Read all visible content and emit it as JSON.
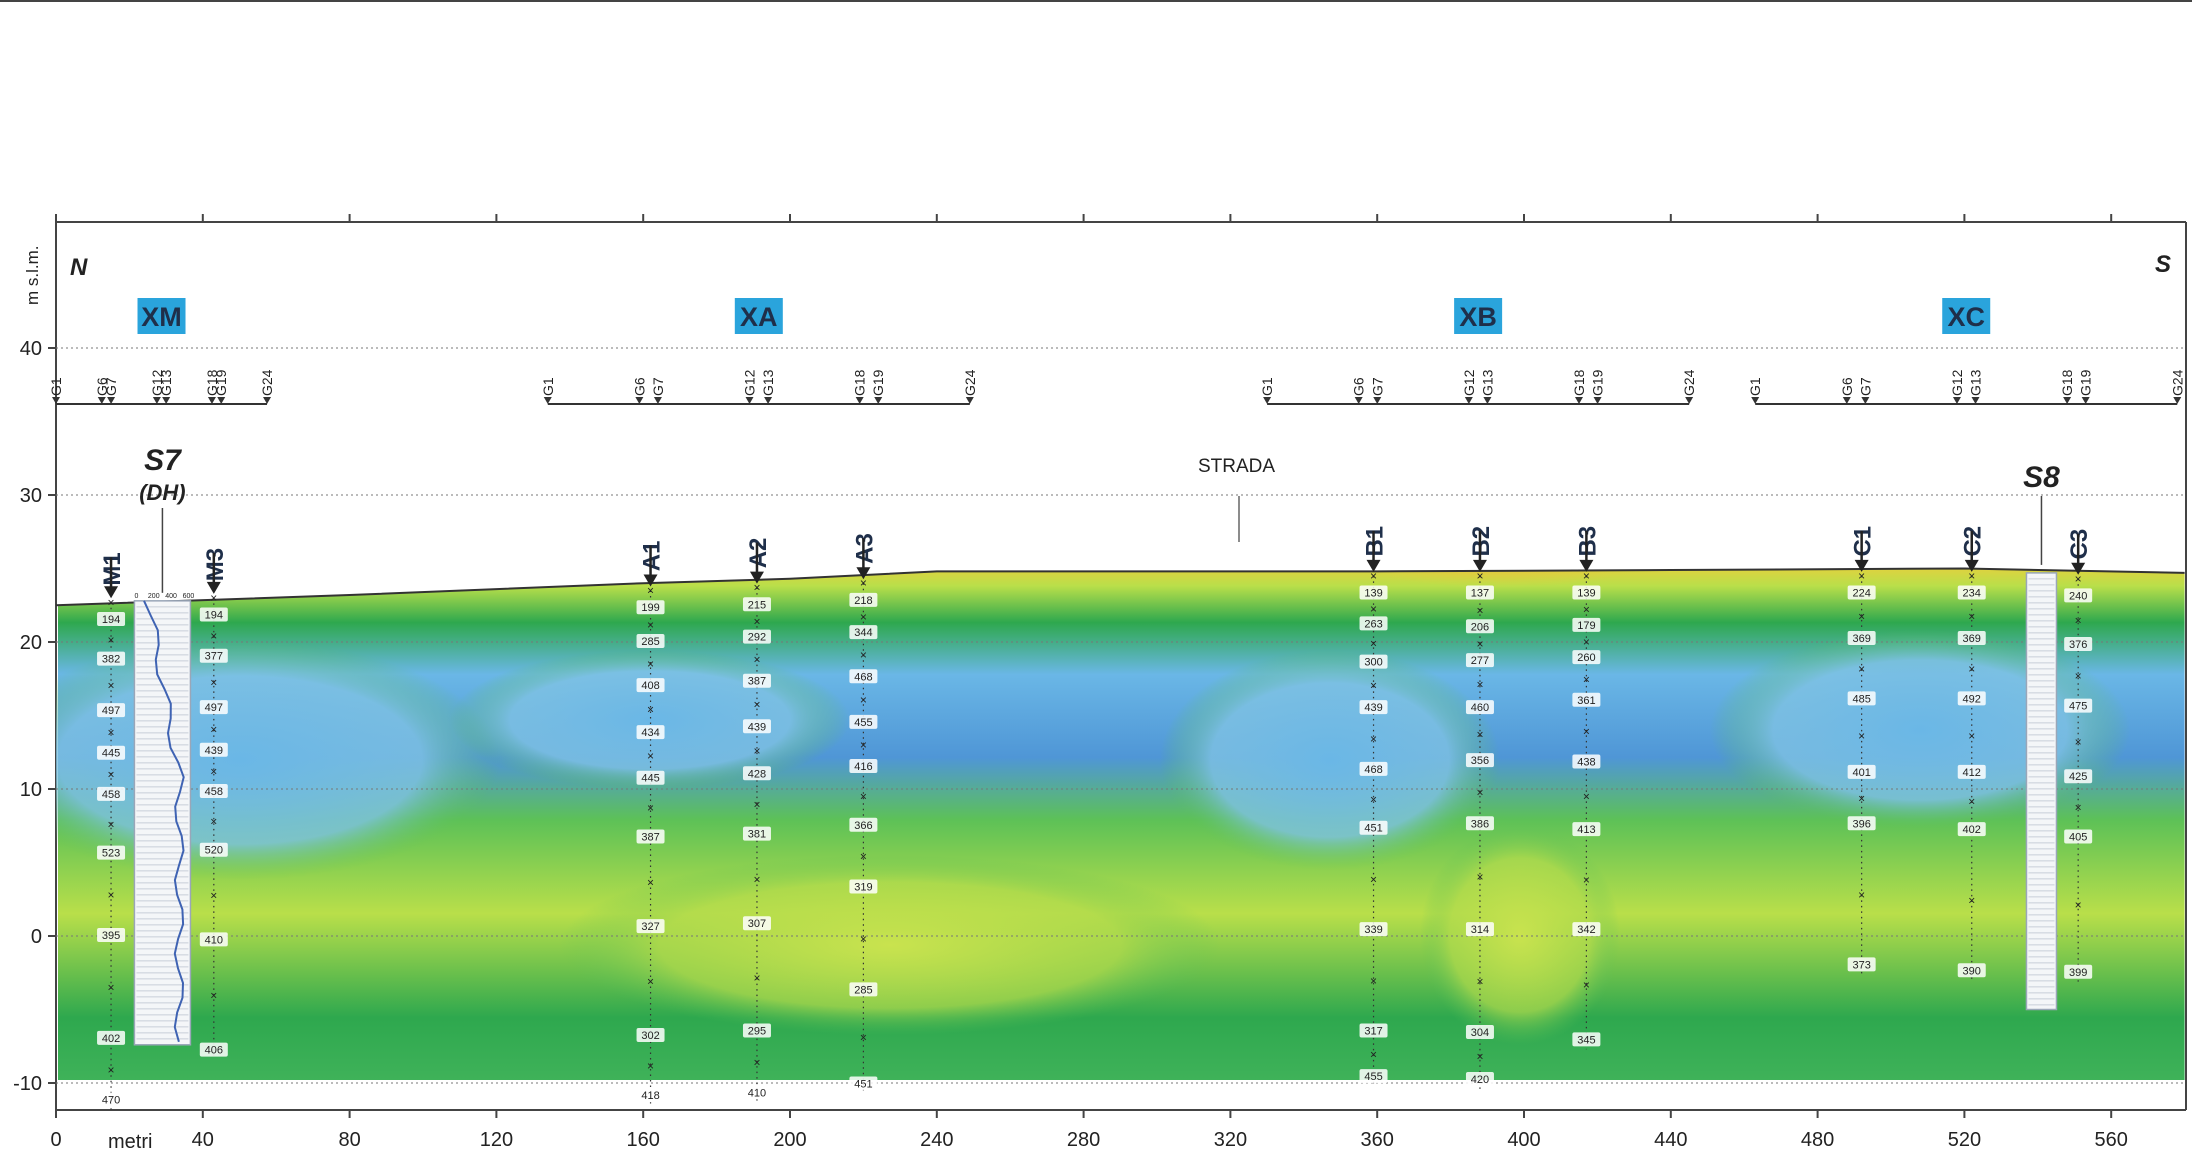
{
  "section": {
    "orientation_left": "N",
    "orientation_right": "S",
    "ylabel": "m s.l.m.",
    "xlabel": "metri",
    "road_label": "STRADA",
    "x_range": [
      0,
      580
    ],
    "y_range": [
      -12,
      48
    ],
    "x_ticks": [
      0,
      40,
      80,
      120,
      160,
      200,
      240,
      280,
      320,
      360,
      400,
      440,
      480,
      520,
      560
    ],
    "y_ticks": [
      -10,
      0,
      10,
      20,
      30,
      40
    ],
    "ground_profile": [
      [
        0,
        22.5
      ],
      [
        80,
        23.2
      ],
      [
        160,
        24.0
      ],
      [
        200,
        24.3
      ],
      [
        240,
        24.8
      ],
      [
        360,
        24.8
      ],
      [
        440,
        24.9
      ],
      [
        520,
        25.0
      ],
      [
        580,
        24.7
      ]
    ],
    "colors": {
      "very_low": "#e2642a",
      "low": "#f0cc3a",
      "mid_low": "#b9df4a",
      "mid": "#5dc157",
      "mid_high": "#2ea84e",
      "high": "#6ab7e6",
      "very_high": "#4f96d6",
      "tag_bg": "#2aa4dc",
      "frame": "#555555"
    }
  },
  "arrays": [
    {
      "name": "XM",
      "x_start": 0,
      "x_end": 57.5
    },
    {
      "name": "XA",
      "x_start": 134,
      "x_end": 249
    },
    {
      "name": "XB",
      "x_start": 330,
      "x_end": 445
    },
    {
      "name": "XC",
      "x_start": 463,
      "x_end": 578
    }
  ],
  "geophone_labels": [
    "G1",
    "G6",
    "G7",
    "G12",
    "G13",
    "G18",
    "G19",
    "G24"
  ],
  "boreholes": [
    {
      "name": "S7",
      "sub": "(DH)",
      "x": 29,
      "top": 22.8,
      "bottom": -7.4,
      "scale": [
        "0",
        "200",
        "400",
        "600"
      ]
    },
    {
      "name": "S8",
      "sub": "",
      "x": 541,
      "top": 24.7,
      "bottom": -5.0,
      "scale": []
    }
  ],
  "profiles": [
    {
      "name": "M1",
      "x": 15,
      "values": [
        {
          "y": 21.5,
          "v": "194"
        },
        {
          "y": 18.8,
          "v": "382"
        },
        {
          "y": 15.3,
          "v": "497"
        },
        {
          "y": 12.4,
          "v": "445"
        },
        {
          "y": 9.6,
          "v": "458"
        },
        {
          "y": 5.6,
          "v": "523"
        },
        {
          "y": 0,
          "v": "395"
        },
        {
          "y": -7,
          "v": "402"
        },
        {
          "y": -11.2,
          "v": "470"
        }
      ]
    },
    {
      "name": "M3",
      "x": 43,
      "values": [
        {
          "y": 21.8,
          "v": "194"
        },
        {
          "y": 19,
          "v": "377"
        },
        {
          "y": 15.5,
          "v": "497"
        },
        {
          "y": 12.6,
          "v": "439"
        },
        {
          "y": 9.8,
          "v": "458"
        },
        {
          "y": 5.8,
          "v": "520"
        },
        {
          "y": -0.3,
          "v": "410"
        },
        {
          "y": -7.8,
          "v": "406"
        }
      ]
    },
    {
      "name": "A1",
      "x": 162,
      "values": [
        {
          "y": 22.3,
          "v": "199"
        },
        {
          "y": 20,
          "v": "285"
        },
        {
          "y": 17,
          "v": "408"
        },
        {
          "y": 13.8,
          "v": "434"
        },
        {
          "y": 10.7,
          "v": "445"
        },
        {
          "y": 6.7,
          "v": "387"
        },
        {
          "y": 0.6,
          "v": "327"
        },
        {
          "y": -6.8,
          "v": "302"
        },
        {
          "y": -10.9,
          "v": "418"
        }
      ]
    },
    {
      "name": "A2",
      "x": 191,
      "values": [
        {
          "y": 22.5,
          "v": "215"
        },
        {
          "y": 20.3,
          "v": "292"
        },
        {
          "y": 17.3,
          "v": "387"
        },
        {
          "y": 14.2,
          "v": "439"
        },
        {
          "y": 11,
          "v": "428"
        },
        {
          "y": 6.9,
          "v": "381"
        },
        {
          "y": 0.8,
          "v": "307"
        },
        {
          "y": -6.5,
          "v": "295"
        },
        {
          "y": -10.7,
          "v": "410"
        }
      ]
    },
    {
      "name": "A3",
      "x": 220,
      "values": [
        {
          "y": 22.8,
          "v": "218"
        },
        {
          "y": 20.6,
          "v": "344"
        },
        {
          "y": 17.6,
          "v": "468"
        },
        {
          "y": 14.5,
          "v": "455"
        },
        {
          "y": 11.5,
          "v": "416"
        },
        {
          "y": 7.5,
          "v": "366"
        },
        {
          "y": 3.3,
          "v": "319"
        },
        {
          "y": -3.7,
          "v": "285"
        },
        {
          "y": -10.1,
          "v": "451"
        }
      ]
    },
    {
      "name": "B1",
      "x": 359,
      "values": [
        {
          "y": 23.3,
          "v": "139"
        },
        {
          "y": 21.2,
          "v": "263"
        },
        {
          "y": 18.6,
          "v": "300"
        },
        {
          "y": 15.5,
          "v": "439"
        },
        {
          "y": 11.3,
          "v": "468"
        },
        {
          "y": 7.3,
          "v": "451"
        },
        {
          "y": 0.4,
          "v": "339"
        },
        {
          "y": -6.5,
          "v": "317"
        },
        {
          "y": -9.6,
          "v": "455"
        }
      ]
    },
    {
      "name": "B2",
      "x": 388,
      "values": [
        {
          "y": 23.3,
          "v": "137"
        },
        {
          "y": 21,
          "v": "206"
        },
        {
          "y": 18.7,
          "v": "277"
        },
        {
          "y": 15.5,
          "v": "460"
        },
        {
          "y": 11.9,
          "v": "356"
        },
        {
          "y": 7.6,
          "v": "386"
        },
        {
          "y": 0.4,
          "v": "314"
        },
        {
          "y": -6.6,
          "v": "304"
        },
        {
          "y": -9.8,
          "v": "420"
        }
      ]
    },
    {
      "name": "B3",
      "x": 417,
      "values": [
        {
          "y": 23.3,
          "v": "139"
        },
        {
          "y": 21.1,
          "v": "179"
        },
        {
          "y": 18.9,
          "v": "260"
        },
        {
          "y": 16,
          "v": "361"
        },
        {
          "y": 11.8,
          "v": "438"
        },
        {
          "y": 7.2,
          "v": "413"
        },
        {
          "y": 0.4,
          "v": "342"
        },
        {
          "y": -7.1,
          "v": "345"
        }
      ]
    },
    {
      "name": "C1",
      "x": 492,
      "values": [
        {
          "y": 23.3,
          "v": "224"
        },
        {
          "y": 20.2,
          "v": "369"
        },
        {
          "y": 16.1,
          "v": "485"
        },
        {
          "y": 11.1,
          "v": "401"
        },
        {
          "y": 7.6,
          "v": "396"
        },
        {
          "y": -2,
          "v": "373"
        }
      ]
    },
    {
      "name": "C2",
      "x": 522,
      "values": [
        {
          "y": 23.3,
          "v": "234"
        },
        {
          "y": 20.2,
          "v": "369"
        },
        {
          "y": 16.1,
          "v": "492"
        },
        {
          "y": 11.1,
          "v": "412"
        },
        {
          "y": 7.2,
          "v": "402"
        },
        {
          "y": -2.4,
          "v": "390"
        }
      ]
    },
    {
      "name": "C3",
      "x": 551,
      "values": [
        {
          "y": 23.1,
          "v": "240"
        },
        {
          "y": 19.8,
          "v": "376"
        },
        {
          "y": 15.6,
          "v": "475"
        },
        {
          "y": 10.8,
          "v": "425"
        },
        {
          "y": 6.7,
          "v": "405"
        },
        {
          "y": -2.5,
          "v": "399"
        }
      ]
    }
  ]
}
